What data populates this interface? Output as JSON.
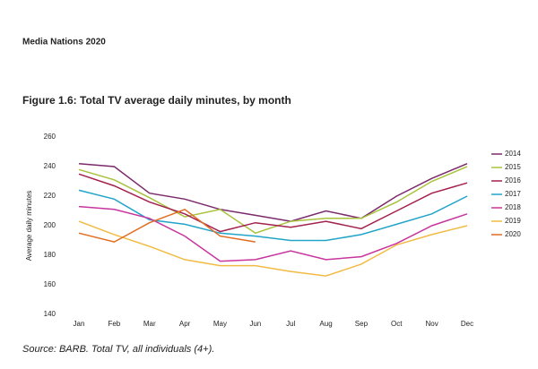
{
  "header": "Media Nations 2020",
  "source": "Source: BARB. Total TV, all individuals (4+).",
  "chart_data": {
    "type": "line",
    "title": "Figure 1.6: Total TV average daily minutes, by month",
    "y_label": "Average daily minutes",
    "categories": [
      "Jan",
      "Feb",
      "Mar",
      "Apr",
      "May",
      "Jun",
      "Jul",
      "Aug",
      "Sep",
      "Oct",
      "Nov",
      "Dec"
    ],
    "ylim": [
      140,
      260
    ],
    "yticks": [
      140,
      160,
      180,
      200,
      220,
      240,
      260
    ],
    "grid": false,
    "legend": "right",
    "series": [
      {
        "name": "2014",
        "color": "#7b2a6b",
        "values": [
          242,
          240,
          222,
          218,
          211,
          207,
          203,
          210,
          205,
          220,
          232,
          242
        ]
      },
      {
        "name": "2015",
        "color": "#a9c23c",
        "values": [
          238,
          231,
          219,
          206,
          211,
          195,
          203,
          205,
          205,
          216,
          230,
          240
        ]
      },
      {
        "name": "2016",
        "color": "#a3214f",
        "values": [
          235,
          227,
          216,
          208,
          196,
          202,
          199,
          203,
          198,
          210,
          222,
          229
        ]
      },
      {
        "name": "2017",
        "color": "#22a4c9",
        "values": [
          224,
          218,
          204,
          201,
          195,
          193,
          190,
          190,
          194,
          201,
          208,
          220
        ]
      },
      {
        "name": "2018",
        "color": "#c8359e",
        "values": [
          213,
          211,
          205,
          193,
          176,
          177,
          183,
          177,
          179,
          188,
          200,
          208
        ]
      },
      {
        "name": "2019",
        "color": "#f1bb43",
        "values": [
          203,
          194,
          186,
          177,
          173,
          173,
          169,
          166,
          174,
          187,
          194,
          200
        ]
      },
      {
        "name": "2020",
        "color": "#e06c22",
        "values": [
          195,
          189,
          202,
          211,
          193,
          189,
          null,
          null,
          null,
          null,
          null,
          null
        ]
      }
    ]
  }
}
